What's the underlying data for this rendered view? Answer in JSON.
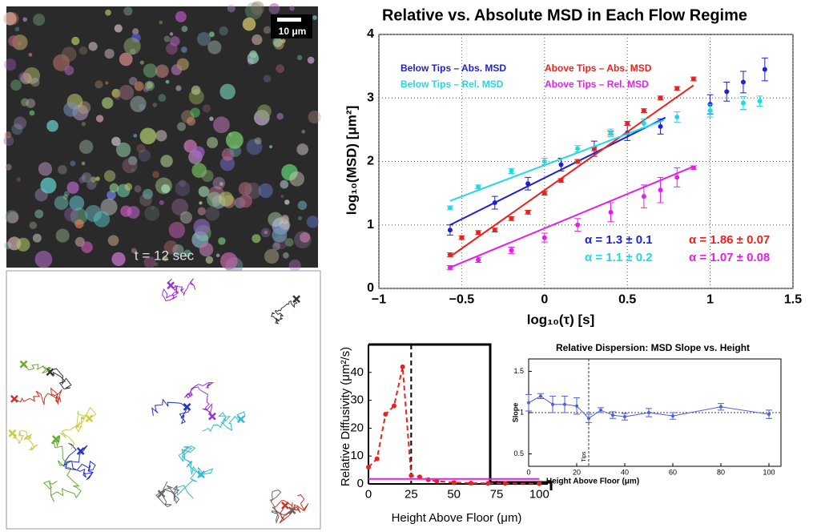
{
  "chart_data": [
    {
      "type": "scatter",
      "title": "Relative vs. Absolute MSD in Each Flow Regime",
      "x_label": "log₁₀(τ) [s]",
      "y_label": "log₁₀(MSD) [μm²]",
      "xlim": [
        -1,
        1.5
      ],
      "xticks": [
        {
          "value": -1,
          "label": "−1"
        },
        {
          "value": -0.5,
          "label": "−0.5"
        },
        0,
        0.5,
        1,
        1.5
      ],
      "ylim": [
        0,
        4
      ],
      "yticks": [
        0,
        1,
        2,
        3,
        4
      ],
      "grid": true,
      "legend": "upper left",
      "series": [
        {
          "name": "Below Tips – Abs. MSD",
          "color": "#1f1fd6",
          "x": [
            -0.57,
            -0.3,
            -0.1,
            0.1,
            0.3,
            0.5,
            0.7,
            1.0,
            1.1,
            1.2,
            1.33
          ],
          "values": [
            0.92,
            1.35,
            1.65,
            1.95,
            2.2,
            2.45,
            2.55,
            2.9,
            3.1,
            3.25,
            3.45
          ],
          "errors": [
            0.08,
            0.1,
            0.1,
            0.1,
            0.12,
            0.12,
            0.12,
            0.15,
            0.15,
            0.17,
            0.18
          ],
          "fit_x": [
            -0.57,
            0.73
          ],
          "fit_values": [
            1.0,
            2.69
          ]
        },
        {
          "name": "Above Tips – Abs. MSD",
          "color": "#e8231f",
          "x": [
            -0.57,
            -0.5,
            -0.4,
            -0.3,
            -0.2,
            -0.1,
            0,
            0.1,
            0.2,
            0.3,
            0.4,
            0.5,
            0.6,
            0.7,
            0.8,
            0.9
          ],
          "values": [
            0.53,
            0.8,
            0.88,
            0.92,
            1.1,
            1.2,
            1.5,
            1.7,
            2.0,
            2.2,
            2.45,
            2.6,
            2.8,
            3.0,
            3.15,
            3.3
          ],
          "errors": [
            0.03,
            0.03,
            0.03,
            0.03,
            0.03,
            0.03,
            0.03,
            0.03,
            0.03,
            0.03,
            0.03,
            0.03,
            0.03,
            0.03,
            0.03,
            0.03
          ],
          "fit_x": [
            -0.57,
            0.9
          ],
          "fit_values": [
            0.5,
            3.2
          ]
        },
        {
          "name": "Below Tips – Rel. MSD",
          "color": "#22d8e6",
          "x": [
            -0.57,
            -0.4,
            -0.2,
            0,
            0.2,
            0.4,
            0.6,
            0.8,
            1.0,
            1.2,
            1.3
          ],
          "values": [
            1.27,
            1.6,
            1.85,
            2.0,
            2.2,
            2.45,
            2.6,
            2.7,
            2.8,
            2.92,
            2.95
          ],
          "errors": [
            0.03,
            0.03,
            0.04,
            0.05,
            0.05,
            0.06,
            0.07,
            0.08,
            0.1,
            0.1,
            0.08
          ],
          "fit_x": [
            -0.57,
            0.72
          ],
          "fit_values": [
            1.38,
            2.65
          ]
        },
        {
          "name": "Above Tips – Rel. MSD",
          "color": "#e61fe6",
          "x": [
            -0.57,
            -0.4,
            -0.2,
            0,
            0.2,
            0.4,
            0.6,
            0.7,
            0.8,
            0.9
          ],
          "values": [
            0.33,
            0.45,
            0.6,
            0.8,
            1.0,
            1.2,
            1.45,
            1.55,
            1.75,
            1.9
          ],
          "errors": [
            0.03,
            0.04,
            0.05,
            0.07,
            0.1,
            0.15,
            0.18,
            0.2,
            0.15,
            0.03
          ],
          "fit_x": [
            -0.57,
            0.9
          ],
          "fit_values": [
            0.33,
            1.92
          ]
        }
      ],
      "annotations": [
        {
          "text": "α = 1.3 ± 0.1",
          "color": "#1f1fd6"
        },
        {
          "text": "α = 1.86 ± 0.07",
          "color": "#e8231f"
        },
        {
          "text": "α = 1.1 ± 0.2",
          "color": "#22d8e6"
        },
        {
          "text": "α = 1.07 ± 0.08",
          "color": "#e61fe6"
        }
      ]
    },
    {
      "type": "line",
      "x_label": "Height Above Floor (μm)",
      "y_label": "Relative Diffusivity (μm²/s)",
      "xlim": [
        0,
        105
      ],
      "xticks": [
        0,
        25,
        50,
        75,
        100
      ],
      "ylim": [
        0,
        50
      ],
      "yticks": [
        0,
        10,
        20,
        30,
        40
      ],
      "grid": false,
      "vline": 25,
      "series": [
        {
          "color": "#e8231f",
          "dash": true,
          "x": [
            0,
            5,
            10,
            15,
            20,
            25,
            30,
            35,
            40,
            50,
            60,
            70,
            80,
            100
          ],
          "values": [
            6,
            9,
            25,
            28,
            42,
            3,
            2.5,
            1.5,
            1,
            0.5,
            0.3,
            0.2,
            0.2,
            0.1
          ]
        },
        {
          "color": "#e61fe6",
          "dash": false,
          "x": [
            0,
            100
          ],
          "values": [
            1.8,
            1.8
          ]
        }
      ]
    },
    {
      "type": "line",
      "title": "Relative Dispersion: MSD Slope vs. Height",
      "x_label": "Height Above Floor (μm)",
      "y_label": "Slope",
      "vline_label": "Tips",
      "xlim": [
        0,
        105
      ],
      "xticks": [
        0,
        20,
        40,
        60,
        80,
        100
      ],
      "ylim": [
        0.35,
        1.65
      ],
      "yticks": [
        0.5,
        1,
        1.5
      ],
      "grid": false,
      "vline": 25,
      "hline": 1,
      "series": [
        {
          "color": "#4a5fd8",
          "dash": false,
          "x": [
            0,
            5,
            10,
            15,
            20,
            25,
            30,
            35,
            40,
            50,
            60,
            80,
            100
          ],
          "values": [
            1.12,
            1.2,
            1.1,
            1.1,
            1.08,
            0.93,
            1.03,
            0.97,
            0.95,
            1.0,
            0.96,
            1.07,
            0.98
          ],
          "errors": [
            0.1,
            0.03,
            0.1,
            0.1,
            0.1,
            0.05,
            0.03,
            0.04,
            0.04,
            0.05,
            0.04,
            0.04,
            0.05
          ]
        }
      ]
    }
  ],
  "image": {
    "scale_label": "10 μm",
    "time_label": "t = 12 sec"
  }
}
